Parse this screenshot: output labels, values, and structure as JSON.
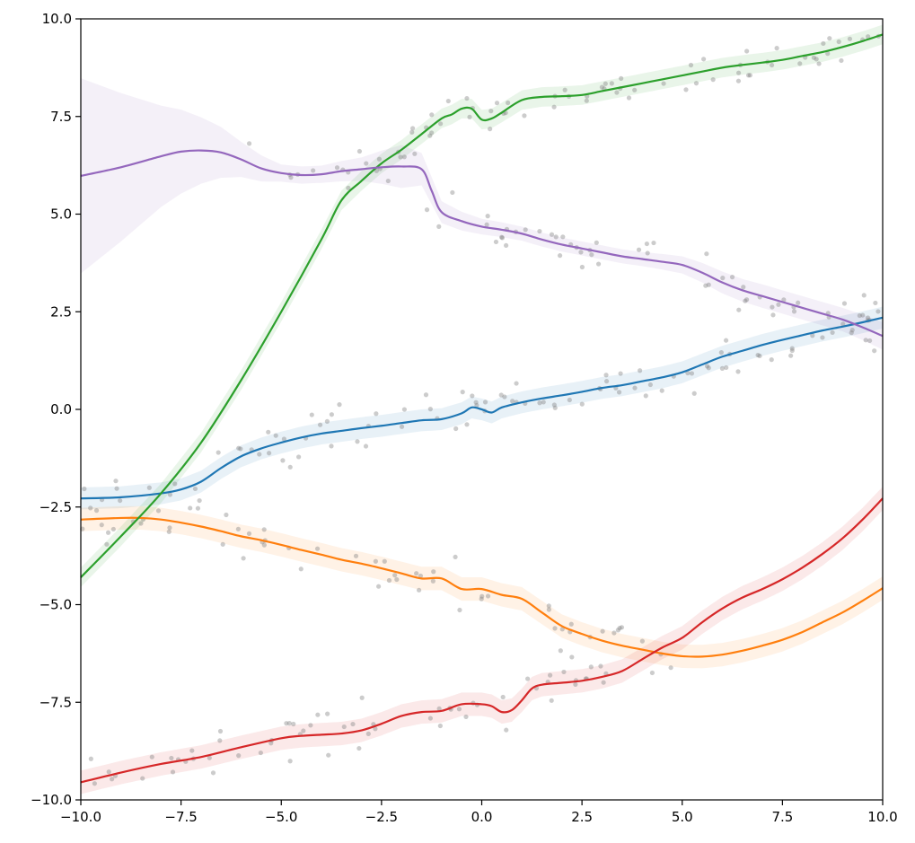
{
  "chart_data": {
    "type": "line",
    "title": "",
    "xlabel": "",
    "ylabel": "",
    "xlim": [
      -10,
      10
    ],
    "ylim": [
      -10,
      10
    ],
    "grid": false,
    "legend": "none",
    "xticks": [
      -10,
      -7.5,
      -5,
      -2.5,
      0,
      2.5,
      5,
      7.5,
      10
    ],
    "yticks": [
      -10,
      -7.5,
      -5,
      -2.5,
      0,
      2.5,
      5,
      7.5,
      10
    ],
    "xtick_labels": [
      "−10.0",
      "−7.5",
      "−5.0",
      "−2.5",
      "0.0",
      "2.5",
      "5.0",
      "7.5",
      "10.0"
    ],
    "ytick_labels": [
      "−10.0",
      "−7.5",
      "−5.0",
      "−2.5",
      "0.0",
      "2.5",
      "5.0",
      "7.5",
      "10.0"
    ],
    "scatter_color": "#808080",
    "series": [
      {
        "color": "#1f77b4",
        "x": [
          -10,
          -9,
          -8,
          -7.5,
          -7,
          -6.5,
          -6,
          -5.5,
          -5,
          -4.5,
          -4,
          -3.5,
          -3,
          -2.5,
          -2,
          -1.5,
          -1,
          -0.5,
          -0.25,
          0,
          0.25,
          0.5,
          1,
          1.5,
          2,
          2.5,
          3,
          3.5,
          4,
          4.5,
          5,
          5.5,
          6,
          6.5,
          7,
          7.5,
          8,
          8.5,
          9,
          9.5,
          10
        ],
        "y": [
          -2.28,
          -2.25,
          -2.15,
          -2.05,
          -1.85,
          -1.5,
          -1.2,
          -1.0,
          -0.85,
          -0.72,
          -0.62,
          -0.55,
          -0.48,
          -0.42,
          -0.35,
          -0.28,
          -0.25,
          -0.1,
          0.05,
          0.0,
          -0.08,
          0.05,
          0.18,
          0.28,
          0.36,
          0.45,
          0.55,
          0.62,
          0.72,
          0.82,
          0.95,
          1.15,
          1.35,
          1.5,
          1.65,
          1.78,
          1.9,
          2.02,
          2.12,
          2.23,
          2.35
        ],
        "band": 0.28
      },
      {
        "color": "#ff7f0e",
        "x": [
          -10,
          -9,
          -8.5,
          -8,
          -7.5,
          -7,
          -6.5,
          -6,
          -5.5,
          -5,
          -4.5,
          -4,
          -3.5,
          -3,
          -2.5,
          -2,
          -1.5,
          -1,
          -0.5,
          0,
          0.5,
          1,
          1.5,
          2,
          2.5,
          3,
          3.5,
          4,
          4.5,
          5,
          5.5,
          6,
          6.5,
          7,
          7.5,
          8,
          8.5,
          9,
          9.5,
          10
        ],
        "y": [
          -2.82,
          -2.78,
          -2.78,
          -2.82,
          -2.9,
          -3.0,
          -3.12,
          -3.25,
          -3.35,
          -3.47,
          -3.6,
          -3.72,
          -3.85,
          -3.95,
          -4.07,
          -4.2,
          -4.33,
          -4.33,
          -4.6,
          -4.6,
          -4.75,
          -4.85,
          -5.2,
          -5.55,
          -5.75,
          -5.92,
          -6.05,
          -6.15,
          -6.25,
          -6.32,
          -6.33,
          -6.28,
          -6.18,
          -6.05,
          -5.9,
          -5.7,
          -5.45,
          -5.2,
          -4.9,
          -4.58
        ],
        "band": 0.3
      },
      {
        "color": "#2ca02c",
        "x": [
          -10,
          -9,
          -8,
          -7,
          -6,
          -5,
          -4,
          -3.5,
          -3,
          -2.5,
          -2,
          -1.5,
          -1,
          -0.75,
          -0.5,
          -0.25,
          0,
          0.25,
          0.5,
          1,
          1.5,
          2,
          2.5,
          3,
          3.5,
          4,
          4.5,
          5,
          5.5,
          6,
          6.5,
          7,
          7.5,
          8,
          8.5,
          9,
          9.5,
          10
        ],
        "y": [
          -4.3,
          -3.25,
          -2.15,
          -0.85,
          0.75,
          2.5,
          4.35,
          5.35,
          5.85,
          6.3,
          6.65,
          7.05,
          7.45,
          7.55,
          7.7,
          7.7,
          7.42,
          7.45,
          7.6,
          7.92,
          8.0,
          8.02,
          8.05,
          8.15,
          8.25,
          8.35,
          8.45,
          8.55,
          8.65,
          8.75,
          8.82,
          8.88,
          8.95,
          9.05,
          9.15,
          9.28,
          9.43,
          9.6
        ],
        "band": 0.25
      },
      {
        "color": "#d62728",
        "x": [
          -10,
          -9,
          -8,
          -7,
          -6,
          -5,
          -4.5,
          -4,
          -3.5,
          -3,
          -2.5,
          -2,
          -1.5,
          -1,
          -0.5,
          0,
          0.25,
          0.5,
          0.75,
          1,
          1.25,
          1.5,
          2,
          2.5,
          3,
          3.5,
          4,
          4.5,
          5,
          5.5,
          6,
          6.5,
          7,
          7.5,
          8,
          8.5,
          9,
          9.5,
          10
        ],
        "y": [
          -9.55,
          -9.3,
          -9.08,
          -8.9,
          -8.65,
          -8.42,
          -8.36,
          -8.33,
          -8.3,
          -8.22,
          -8.05,
          -7.85,
          -7.75,
          -7.72,
          -7.55,
          -7.55,
          -7.6,
          -7.75,
          -7.7,
          -7.45,
          -7.15,
          -7.05,
          -7.0,
          -6.95,
          -6.85,
          -6.7,
          -6.4,
          -6.1,
          -5.85,
          -5.45,
          -5.1,
          -4.82,
          -4.6,
          -4.35,
          -4.05,
          -3.7,
          -3.3,
          -2.82,
          -2.28
        ],
        "band": 0.3
      },
      {
        "color": "#9467bd",
        "x": [
          -10,
          -9,
          -8,
          -7.5,
          -7,
          -6.5,
          -6,
          -5.5,
          -5,
          -4.5,
          -4,
          -3.5,
          -3,
          -2.5,
          -2,
          -1.5,
          -1.25,
          -1,
          -0.5,
          0,
          0.5,
          1,
          1.5,
          2,
          2.5,
          3,
          3.5,
          4,
          4.5,
          5,
          5.5,
          6,
          6.5,
          7,
          7.5,
          8,
          8.5,
          9,
          9.5,
          10
        ],
        "y": [
          5.98,
          6.2,
          6.48,
          6.6,
          6.63,
          6.58,
          6.4,
          6.17,
          6.05,
          6.0,
          6.02,
          6.1,
          6.15,
          6.2,
          6.22,
          6.15,
          5.6,
          5.05,
          4.82,
          4.68,
          4.6,
          4.5,
          4.35,
          4.22,
          4.12,
          4.02,
          3.92,
          3.85,
          3.78,
          3.7,
          3.5,
          3.25,
          3.05,
          2.9,
          2.75,
          2.6,
          2.45,
          2.3,
          2.1,
          1.88
        ],
        "band_x": [
          -10,
          -9,
          -8,
          -7,
          -6,
          -5,
          -4,
          -3,
          -2,
          -1,
          0,
          1,
          2,
          3,
          4,
          5,
          6,
          7,
          8,
          9,
          10
        ],
        "band_w": [
          2.5,
          1.9,
          1.3,
          0.85,
          0.45,
          0.22,
          0.22,
          0.3,
          0.55,
          0.28,
          0.2,
          0.18,
          0.18,
          0.18,
          0.18,
          0.22,
          0.28,
          0.3,
          0.3,
          0.3,
          0.35
        ]
      }
    ]
  }
}
